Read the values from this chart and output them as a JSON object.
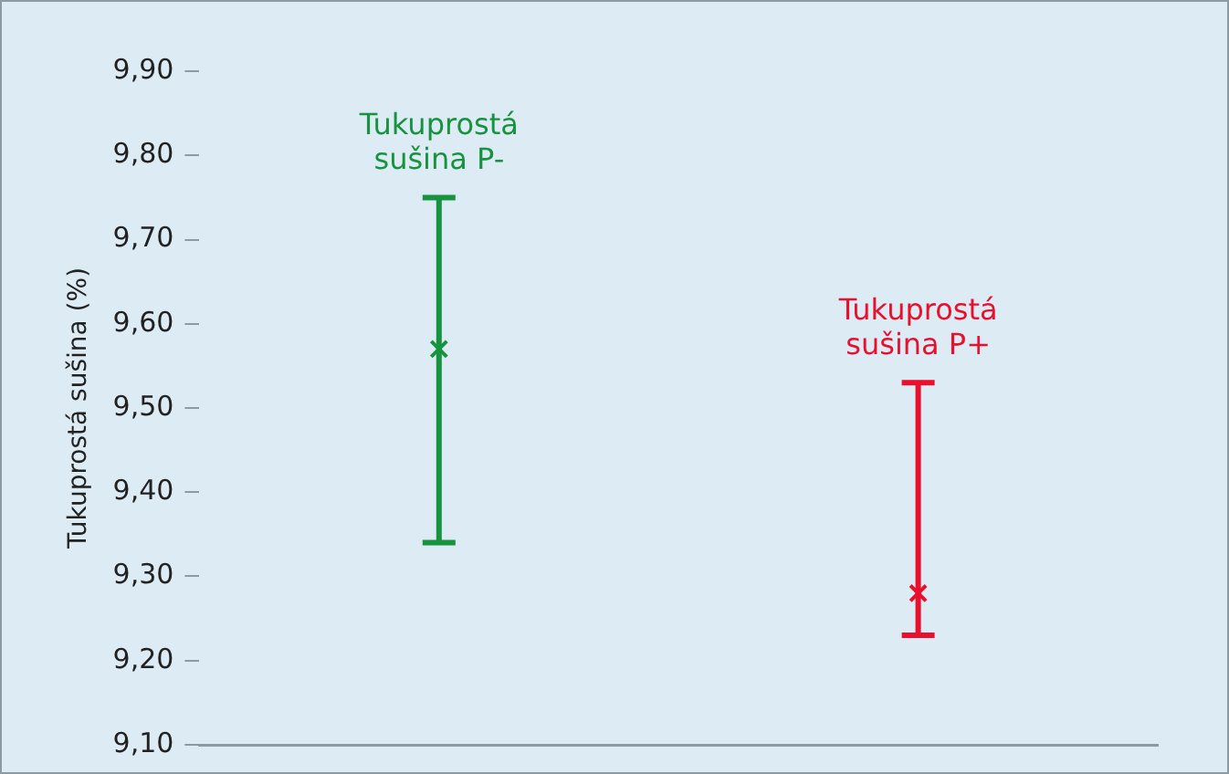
{
  "chart_data": {
    "type": "scatter",
    "ylabel": "Tukuprostá sušina (%)",
    "categories": [
      null,
      null
    ],
    "series": [
      {
        "name": "Tukuprostá sušina P-",
        "color": "#17923f",
        "values": [
          9.57,
          null
        ],
        "errors": [
          [
            9.34,
            9.75
          ],
          null
        ]
      },
      {
        "name": "Tukuprostá sušina P+",
        "color": "#e8112d",
        "values": [
          null,
          9.28
        ],
        "errors": [
          null,
          [
            9.23,
            9.53
          ]
        ]
      }
    ],
    "ylim": [
      9.1,
      9.9
    ],
    "yticks": [
      {
        "value": 9.1,
        "label": "9,10"
      },
      {
        "value": 9.2,
        "label": "9,20"
      },
      {
        "value": 9.3,
        "label": "9,30"
      },
      {
        "value": 9.4,
        "label": "9,40"
      },
      {
        "value": 9.5,
        "label": "9,50"
      },
      {
        "value": 9.6,
        "label": "9,60"
      },
      {
        "value": 9.7,
        "label": "9,70"
      },
      {
        "value": 9.8,
        "label": "9,80"
      },
      {
        "value": 9.9,
        "label": "9,90"
      }
    ],
    "grid": false,
    "legend": false,
    "marker": "cross"
  }
}
